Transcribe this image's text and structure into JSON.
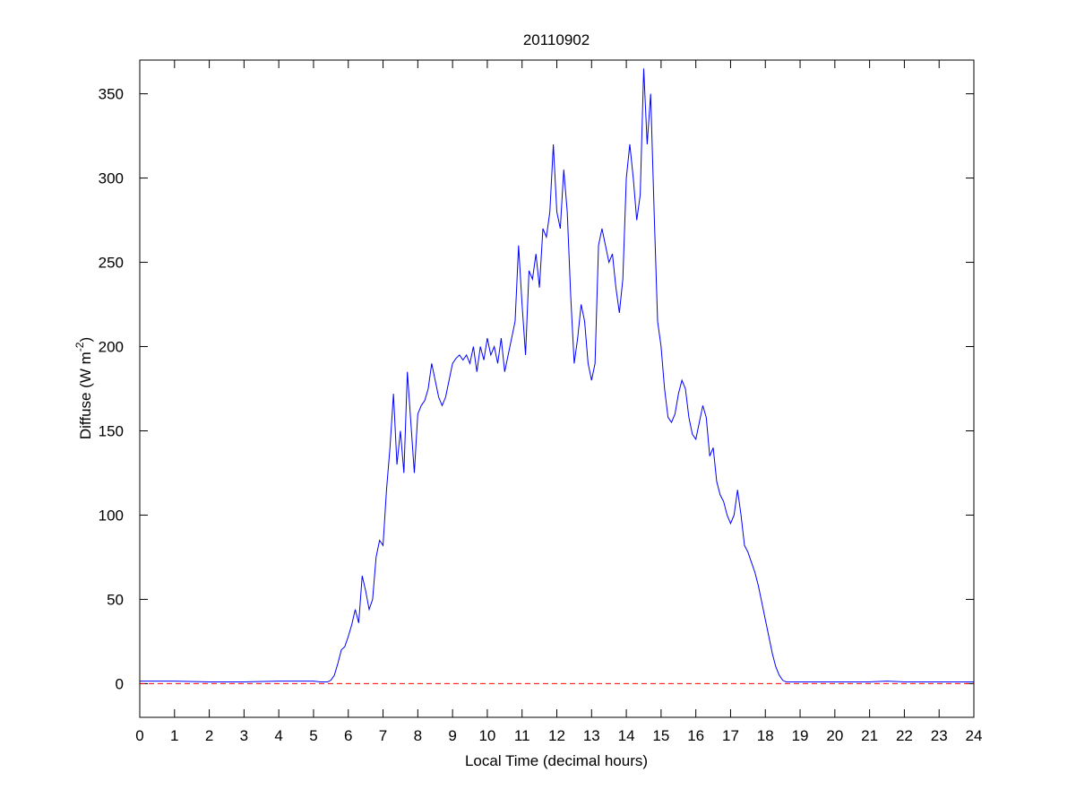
{
  "chart_data": {
    "type": "line",
    "title": "20110902",
    "xlabel": "Local Time (decimal hours)",
    "ylabel_parts": [
      "Diffuse (W m",
      "-2",
      ")"
    ],
    "x": [
      0,
      1,
      2,
      3,
      4,
      5,
      5.2,
      5.4,
      5.5,
      5.6,
      5.7,
      5.8,
      5.9,
      6,
      6.1,
      6.2,
      6.3,
      6.4,
      6.5,
      6.6,
      6.7,
      6.8,
      6.9,
      7,
      7.1,
      7.2,
      7.3,
      7.4,
      7.5,
      7.6,
      7.7,
      7.8,
      7.9,
      8,
      8.1,
      8.2,
      8.3,
      8.4,
      8.5,
      8.6,
      8.7,
      8.8,
      8.9,
      9,
      9.1,
      9.2,
      9.3,
      9.4,
      9.5,
      9.6,
      9.7,
      9.8,
      9.9,
      10,
      10.1,
      10.2,
      10.3,
      10.4,
      10.5,
      10.6,
      10.7,
      10.8,
      10.9,
      11,
      11.1,
      11.2,
      11.3,
      11.4,
      11.5,
      11.6,
      11.7,
      11.8,
      11.9,
      12,
      12.1,
      12.2,
      12.3,
      12.4,
      12.5,
      12.6,
      12.7,
      12.8,
      12.9,
      13,
      13.1,
      13.2,
      13.3,
      13.4,
      13.5,
      13.6,
      13.7,
      13.8,
      13.9,
      14,
      14.1,
      14.2,
      14.3,
      14.4,
      14.5,
      14.6,
      14.7,
      14.8,
      14.9,
      15,
      15.1,
      15.2,
      15.3,
      15.4,
      15.5,
      15.6,
      15.7,
      15.8,
      15.9,
      16,
      16.1,
      16.2,
      16.3,
      16.4,
      16.5,
      16.6,
      16.7,
      16.8,
      16.9,
      17,
      17.1,
      17.2,
      17.3,
      17.4,
      17.5,
      17.6,
      17.7,
      17.8,
      17.9,
      18,
      18.1,
      18.2,
      18.3,
      18.4,
      18.5,
      18.6,
      18.7,
      18.8,
      18.9,
      19,
      20,
      21,
      21.5,
      22,
      23,
      24
    ],
    "values": [
      1.5,
      1.5,
      1,
      1,
      1.5,
      1.5,
      1,
      1,
      2,
      5,
      12,
      20,
      22,
      28,
      35,
      44,
      36,
      64,
      55,
      44,
      50,
      75,
      85,
      82,
      115,
      140,
      172,
      130,
      150,
      125,
      185,
      155,
      125,
      160,
      165,
      168,
      175,
      190,
      180,
      170,
      165,
      170,
      180,
      190,
      193,
      195,
      192,
      195,
      190,
      200,
      185,
      200,
      192,
      205,
      195,
      200,
      190,
      205,
      185,
      195,
      205,
      215,
      260,
      225,
      195,
      245,
      240,
      255,
      235,
      270,
      265,
      280,
      320,
      280,
      270,
      305,
      280,
      230,
      190,
      205,
      225,
      215,
      190,
      180,
      190,
      260,
      270,
      260,
      250,
      255,
      235,
      220,
      240,
      300,
      320,
      300,
      275,
      290,
      365,
      320,
      350,
      280,
      215,
      200,
      175,
      158,
      155,
      160,
      172,
      180,
      175,
      158,
      148,
      145,
      155,
      165,
      158,
      135,
      140,
      120,
      112,
      108,
      100,
      95,
      100,
      115,
      100,
      82,
      78,
      72,
      66,
      58,
      48,
      38,
      28,
      18,
      10,
      5,
      2,
      1,
      1,
      1,
      1,
      1,
      1,
      1,
      1.5,
      1,
      1,
      1
    ],
    "color": "#0000ff",
    "reference_line": {
      "value": 0,
      "color": "#ff0000",
      "dash": "dashed"
    },
    "xlim": [
      0,
      24
    ],
    "ylim": [
      -20,
      370
    ],
    "xticks": [
      0,
      1,
      2,
      3,
      4,
      5,
      6,
      7,
      8,
      9,
      10,
      11,
      12,
      13,
      14,
      15,
      16,
      17,
      18,
      19,
      20,
      21,
      22,
      23,
      24
    ],
    "yticks": [
      0,
      50,
      100,
      150,
      200,
      250,
      300,
      350
    ],
    "grid": false
  }
}
